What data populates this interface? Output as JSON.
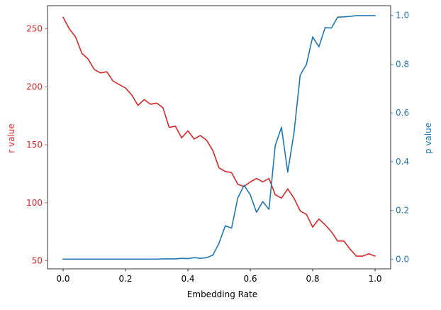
{
  "chart_data": {
    "type": "line",
    "xlabel": "Embedding Rate",
    "y_left_label": "r value",
    "y_right_label": "p value",
    "xlim": [
      -0.05,
      1.05
    ],
    "ylim_left": [
      43,
      270
    ],
    "ylim_right": [
      -0.04,
      1.04
    ],
    "x_ticks": [
      0.0,
      0.2,
      0.4,
      0.6,
      0.8,
      1.0
    ],
    "x_tick_labels": [
      "0.0",
      "0.2",
      "0.4",
      "0.6",
      "0.8",
      "1.0"
    ],
    "y_left_ticks": [
      50,
      100,
      150,
      200,
      250
    ],
    "y_left_tick_labels": [
      "50",
      "100",
      "150",
      "200",
      "250"
    ],
    "y_right_ticks": [
      0.0,
      0.2,
      0.4,
      0.6,
      0.8,
      1.0
    ],
    "y_right_tick_labels": [
      "0.0",
      "0.2",
      "0.4",
      "0.6",
      "0.8",
      "1.0"
    ],
    "x": [
      0.0,
      0.02,
      0.04,
      0.06,
      0.08,
      0.1,
      0.12,
      0.14,
      0.16,
      0.18,
      0.2,
      0.22,
      0.24,
      0.26,
      0.28,
      0.3,
      0.32,
      0.34,
      0.36,
      0.38,
      0.4,
      0.42,
      0.44,
      0.46,
      0.48,
      0.5,
      0.52,
      0.54,
      0.56,
      0.58,
      0.6,
      0.62,
      0.64,
      0.66,
      0.68,
      0.7,
      0.72,
      0.74,
      0.76,
      0.78,
      0.8,
      0.82,
      0.84,
      0.86,
      0.88,
      0.9,
      0.92,
      0.94,
      0.96,
      0.98,
      1.0
    ],
    "series": [
      {
        "axis": "left",
        "color": "#d62728",
        "values": [
          260,
          250,
          243,
          229,
          224,
          215,
          212,
          213,
          205,
          202,
          199,
          193,
          184,
          189,
          185,
          186,
          182,
          165,
          166,
          156,
          162,
          155,
          158,
          154,
          145,
          130,
          127,
          126,
          116,
          114,
          118,
          121,
          118,
          121,
          107,
          104,
          112,
          104,
          93,
          90,
          79,
          86,
          81,
          75,
          67,
          67,
          60,
          54,
          54,
          56,
          54
        ]
      },
      {
        "axis": "right",
        "color": "#1f77b4",
        "values": [
          0.0,
          0.0,
          0.0,
          0.0,
          0.0,
          0.0,
          0.0,
          0.0,
          0.0,
          0.0,
          0.0,
          0.0,
          0.0,
          0.0,
          0.0,
          0.0,
          0.001,
          0.001,
          0.001,
          0.003,
          0.002,
          0.006,
          0.003,
          0.006,
          0.016,
          0.066,
          0.137,
          0.127,
          0.251,
          0.303,
          0.264,
          0.192,
          0.236,
          0.204,
          0.466,
          0.541,
          0.357,
          0.517,
          0.755,
          0.799,
          0.912,
          0.871,
          0.95,
          0.948,
          0.993,
          0.994,
          0.996,
          0.999,
          0.999,
          0.999,
          0.999
        ]
      }
    ]
  }
}
